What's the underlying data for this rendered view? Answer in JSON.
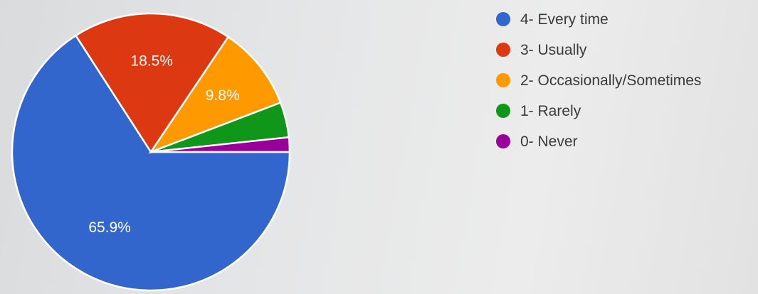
{
  "chart_data": {
    "type": "pie",
    "legend_position": "right",
    "slices": [
      {
        "label": "4- Every time",
        "value": 65.9,
        "value_label": "65.9%",
        "color": "#3366cc"
      },
      {
        "label": "3- Usually",
        "value": 18.5,
        "value_label": "18.5%",
        "color": "#dc3912"
      },
      {
        "label": "2- Occasionally/Sometimes",
        "value": 9.8,
        "value_label": "9.8%",
        "color": "#ff9900"
      },
      {
        "label": "1- Rarely",
        "value": 4.1,
        "value_label": "",
        "color": "#109618"
      },
      {
        "label": "0- Never",
        "value": 1.7,
        "value_label": "",
        "color": "#990099"
      }
    ]
  }
}
